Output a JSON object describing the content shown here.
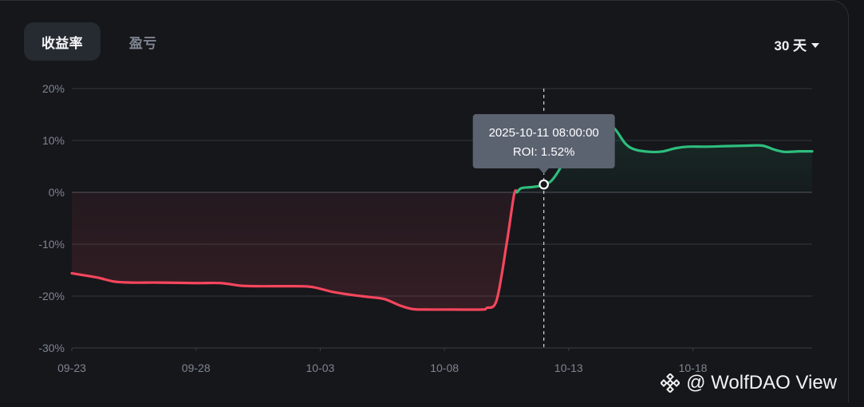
{
  "tabs": [
    {
      "label": "收益率",
      "active": true
    },
    {
      "label": "盈亏",
      "active": false
    }
  ],
  "range_selector": {
    "value": "30 天"
  },
  "tooltip": {
    "date": "2025-10-11 08:00:00",
    "roi_text": "ROI: 1.52%"
  },
  "watermark": {
    "text": "@ WolfDAO View"
  },
  "colors": {
    "positive": "#2ebd7d",
    "negative": "#f6465d",
    "background": "#15171b",
    "grid": "#34373e",
    "axis_text": "#7f8591"
  },
  "chart_data": {
    "type": "line",
    "title": "",
    "xlabel": "",
    "ylabel": "",
    "x_tick_labels": [
      "09-23",
      "09-28",
      "10-03",
      "10-08",
      "10-13",
      "10-18"
    ],
    "y_tick_labels": [
      "20%",
      "10%",
      "0%",
      "-10%",
      "-20%",
      "-30%"
    ],
    "ylim": [
      -30,
      20
    ],
    "x_range_days": [
      0,
      29.8
    ],
    "grid": true,
    "series": [
      {
        "points": [
          [
            0.0,
            -15.6
          ],
          [
            1.0,
            -16.4
          ],
          [
            1.7,
            -17.2
          ],
          [
            2.4,
            -17.4
          ],
          [
            3.5,
            -17.4
          ],
          [
            5.0,
            -17.5
          ],
          [
            6.0,
            -17.5
          ],
          [
            6.8,
            -18.0
          ],
          [
            7.5,
            -18.1
          ],
          [
            8.5,
            -18.1
          ],
          [
            9.6,
            -18.2
          ],
          [
            10.5,
            -19.2
          ],
          [
            11.3,
            -19.8
          ],
          [
            12.0,
            -20.2
          ],
          [
            12.6,
            -20.6
          ],
          [
            13.2,
            -21.8
          ],
          [
            13.7,
            -22.5
          ],
          [
            14.3,
            -22.6
          ],
          [
            15.3,
            -22.6
          ],
          [
            16.5,
            -22.6
          ],
          [
            16.7,
            -22.3
          ],
          [
            17.1,
            -20.8
          ],
          [
            17.5,
            -10.0
          ],
          [
            17.8,
            -0.5
          ],
          [
            18.1,
            0.8
          ],
          [
            18.5,
            1.0
          ],
          [
            18.8,
            1.2
          ],
          [
            19.0,
            1.52
          ],
          [
            19.3,
            2.2
          ],
          [
            19.7,
            5.0
          ],
          [
            20.1,
            9.0
          ],
          [
            20.5,
            11.8
          ],
          [
            20.9,
            12.9
          ],
          [
            21.3,
            13.2
          ],
          [
            21.6,
            13.1
          ],
          [
            21.9,
            12.0
          ],
          [
            22.3,
            9.3
          ],
          [
            22.7,
            8.2
          ],
          [
            23.3,
            7.8
          ],
          [
            23.8,
            7.9
          ],
          [
            24.3,
            8.5
          ],
          [
            24.8,
            8.8
          ],
          [
            25.5,
            8.8
          ],
          [
            26.3,
            8.9
          ],
          [
            27.2,
            9.0
          ],
          [
            27.8,
            9.0
          ],
          [
            28.3,
            8.2
          ],
          [
            28.7,
            7.8
          ],
          [
            29.3,
            7.9
          ],
          [
            29.8,
            7.9
          ]
        ]
      }
    ],
    "highlight": {
      "x_day": 19.0,
      "y": 1.52
    }
  }
}
